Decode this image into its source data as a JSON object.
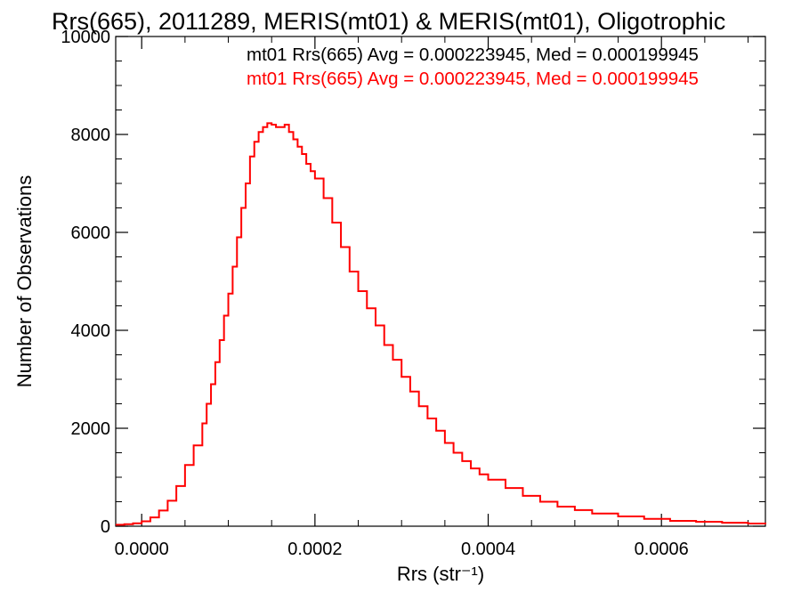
{
  "chart_data": {
    "type": "line",
    "title": "Rrs(665), 2011289, MERIS(mt01) & MERIS(mt01), Oligotrophic",
    "xlabel": "Rrs (str⁻¹)",
    "ylabel": "Number of Observations",
    "xlim": [
      -3e-05,
      0.00072
    ],
    "ylim": [
      0,
      10000
    ],
    "xticks": [
      0.0,
      0.0002,
      0.0004,
      0.0006
    ],
    "xtick_labels": [
      "0.0000",
      "0.0002",
      "0.0004",
      "0.0006"
    ],
    "yticks": [
      0,
      2000,
      4000,
      6000,
      8000,
      10000
    ],
    "ytick_labels": [
      "0",
      "2000",
      "4000",
      "6000",
      "8000",
      "10000"
    ],
    "grid": false,
    "legend_position": "top-right",
    "annotations": [
      {
        "text": "mt01 Rrs(665) Avg = 0.000223945, Med = 0.000199945",
        "color": "#000000"
      },
      {
        "text": "mt01 Rrs(665) Avg = 0.000223945, Med = 0.000199945",
        "color": "#ff0000"
      }
    ],
    "series": [
      {
        "color": "#ff0000",
        "step": true,
        "x": [
          -3e-05,
          -2e-05,
          -1e-05,
          0.0,
          1e-05,
          2e-05,
          3e-05,
          4e-05,
          5e-05,
          6e-05,
          7e-05,
          7.5e-05,
          8e-05,
          8.5e-05,
          9e-05,
          9.5e-05,
          0.0001,
          0.000105,
          0.00011,
          0.000115,
          0.00012,
          0.000125,
          0.00013,
          0.000135,
          0.00014,
          0.000145,
          0.00015,
          0.000155,
          0.00016,
          0.000165,
          0.00017,
          0.000175,
          0.00018,
          0.000185,
          0.00019,
          0.000195,
          0.0002,
          0.00021,
          0.00022,
          0.00023,
          0.00024,
          0.00025,
          0.00026,
          0.00027,
          0.00028,
          0.00029,
          0.0003,
          0.00031,
          0.00032,
          0.00033,
          0.00034,
          0.00035,
          0.00036,
          0.00037,
          0.00038,
          0.00039,
          0.0004,
          0.00042,
          0.00044,
          0.00046,
          0.00048,
          0.0005,
          0.00052,
          0.00055,
          0.00058,
          0.00061,
          0.00064,
          0.00067,
          0.0007,
          0.00072
        ],
        "y": [
          30,
          40,
          60,
          100,
          180,
          320,
          520,
          820,
          1250,
          1650,
          2100,
          2500,
          2900,
          3350,
          3800,
          4300,
          4750,
          5300,
          5900,
          6500,
          7000,
          7550,
          7850,
          8050,
          8150,
          8230,
          8200,
          8150,
          8150,
          8200,
          8050,
          7900,
          7750,
          7600,
          7400,
          7250,
          7100,
          6700,
          6200,
          5700,
          5200,
          4800,
          4450,
          4100,
          3700,
          3400,
          3050,
          2750,
          2450,
          2200,
          1950,
          1700,
          1500,
          1330,
          1180,
          1060,
          950,
          780,
          620,
          500,
          400,
          330,
          260,
          200,
          150,
          110,
          90,
          70,
          55,
          40
        ]
      }
    ]
  }
}
